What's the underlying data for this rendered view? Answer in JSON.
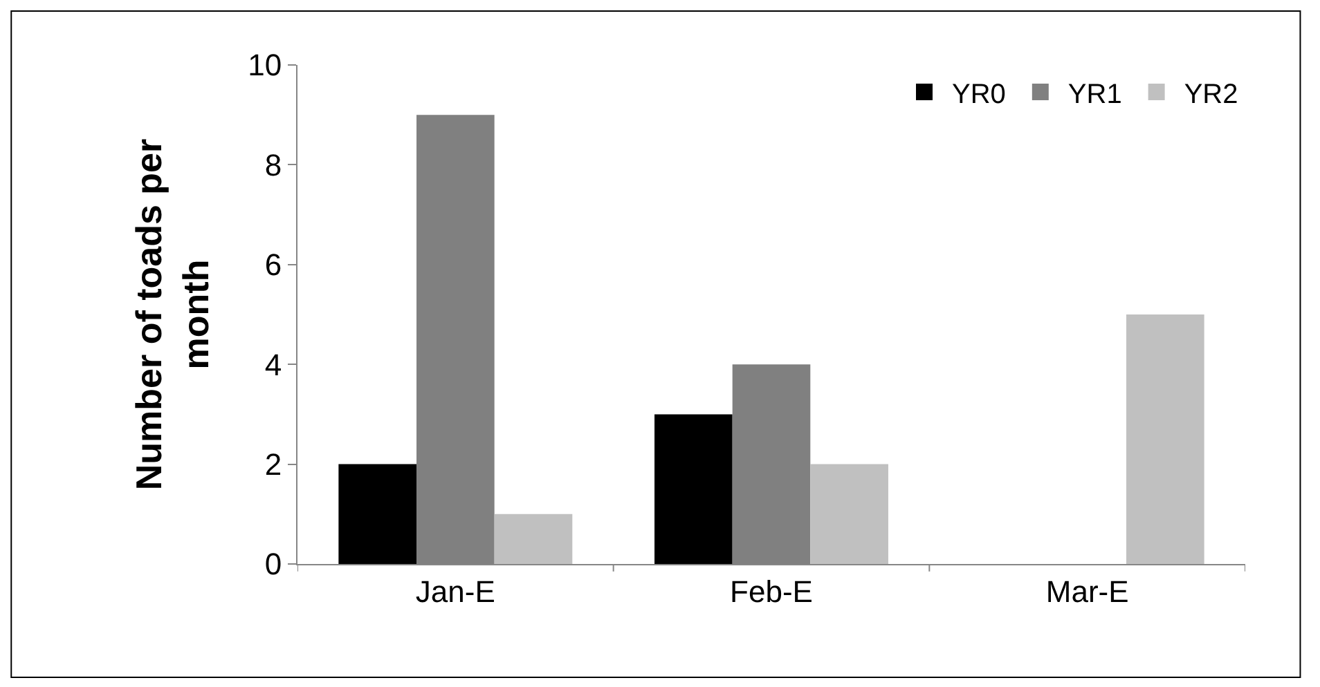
{
  "chart_data": {
    "type": "bar",
    "ylabel": "Number of toads per month",
    "categories": [
      "Jan-E",
      "Feb-E",
      "Mar-E"
    ],
    "series": [
      {
        "name": "YR0",
        "color": "#000000",
        "values": [
          2,
          3,
          0
        ]
      },
      {
        "name": "YR1",
        "color": "#808080",
        "values": [
          9,
          4,
          0
        ]
      },
      {
        "name": "YR2",
        "color": "#c0c0c0",
        "values": [
          1,
          2,
          5
        ]
      }
    ],
    "ylim": [
      0,
      10
    ],
    "yticks": [
      0,
      2,
      4,
      6,
      8,
      10
    ],
    "legend": "top right"
  }
}
